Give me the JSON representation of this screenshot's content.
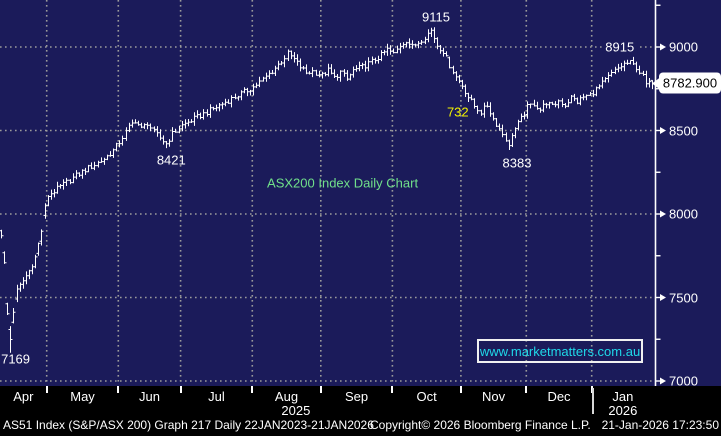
{
  "colors": {
    "background": "#1b1b5a",
    "band_background": "#000000",
    "grid": "#9b9b9b",
    "bars": "#ffffff",
    "white": "#ffffff",
    "yellow": "#f2f200",
    "green": "#70e08a",
    "cyan": "#1fd8e8",
    "tag_bg": "#ffffff",
    "tag_text": "#000000"
  },
  "chart_data": {
    "type": "bar",
    "subtype": "ohlc-daily-bars",
    "title": "ASX200 Index Daily Chart",
    "security": "AS51 Index (S&P/ASX 200)",
    "visible_range": "Apr 2025 - 21 Jan 2026",
    "days_shown": 210,
    "ylim": [
      6970,
      9280
    ],
    "grid": "dotted",
    "last_price": 8782.9,
    "path": [
      [
        0,
        7880
      ],
      [
        1,
        7700
      ],
      [
        2,
        7400
      ],
      [
        3,
        7250
      ],
      [
        4,
        7420
      ],
      [
        5,
        7540
      ],
      [
        7,
        7600
      ],
      [
        9,
        7660
      ],
      [
        11,
        7740
      ],
      [
        13,
        7900
      ],
      [
        14,
        8040
      ],
      [
        15,
        8110
      ],
      [
        18,
        8150
      ],
      [
        21,
        8190
      ],
      [
        24,
        8230
      ],
      [
        27,
        8265
      ],
      [
        30,
        8295
      ],
      [
        33,
        8330
      ],
      [
        36,
        8380
      ],
      [
        38,
        8430
      ],
      [
        41,
        8520
      ],
      [
        43,
        8560
      ],
      [
        45,
        8510
      ],
      [
        47,
        8545
      ],
      [
        49,
        8490
      ],
      [
        51,
        8455
      ],
      [
        53,
        8421
      ],
      [
        55,
        8480
      ],
      [
        57,
        8515
      ],
      [
        58,
        8530
      ],
      [
        61,
        8560
      ],
      [
        64,
        8590
      ],
      [
        67,
        8620
      ],
      [
        70,
        8650
      ],
      [
        73,
        8680
      ],
      [
        76,
        8710
      ],
      [
        79,
        8740
      ],
      [
        81,
        8760
      ],
      [
        84,
        8805
      ],
      [
        87,
        8855
      ],
      [
        90,
        8915
      ],
      [
        92,
        8960
      ],
      [
        94,
        8925
      ],
      [
        96,
        8880
      ],
      [
        98,
        8845
      ],
      [
        100,
        8855
      ],
      [
        103,
        8830
      ],
      [
        105,
        8860
      ],
      [
        107,
        8815
      ],
      [
        109,
        8850
      ],
      [
        111,
        8805
      ],
      [
        113,
        8860
      ],
      [
        116,
        8880
      ],
      [
        119,
        8912
      ],
      [
        122,
        8950
      ],
      [
        124,
        8985
      ],
      [
        126,
        8958
      ],
      [
        128,
        9010
      ],
      [
        130,
        9040
      ],
      [
        132,
        9000
      ],
      [
        134,
        9030
      ],
      [
        136,
        9062
      ],
      [
        138,
        9100
      ],
      [
        140,
        9010
      ],
      [
        142,
        8975
      ],
      [
        144,
        8890
      ],
      [
        146,
        8820
      ],
      [
        148,
        8770
      ],
      [
        150,
        8700
      ],
      [
        152,
        8645
      ],
      [
        154,
        8610
      ],
      [
        156,
        8650
      ],
      [
        158,
        8570
      ],
      [
        160,
        8510
      ],
      [
        162,
        8450
      ],
      [
        163,
        8400
      ],
      [
        164,
        8480
      ],
      [
        166,
        8540
      ],
      [
        168,
        8600
      ],
      [
        169,
        8640
      ],
      [
        171,
        8660
      ],
      [
        173,
        8625
      ],
      [
        175,
        8668
      ],
      [
        177,
        8642
      ],
      [
        179,
        8678
      ],
      [
        181,
        8652
      ],
      [
        183,
        8698
      ],
      [
        185,
        8672
      ],
      [
        187,
        8700
      ],
      [
        189,
        8712
      ],
      [
        190,
        8730
      ],
      [
        192,
        8762
      ],
      [
        194,
        8800
      ],
      [
        196,
        8840
      ],
      [
        198,
        8872
      ],
      [
        200,
        8898
      ],
      [
        202,
        8905
      ],
      [
        204,
        8878
      ],
      [
        206,
        8822
      ],
      [
        207,
        8775
      ],
      [
        209,
        8783
      ]
    ],
    "special_days": {
      "3": {
        "low": 7169
      },
      "138": {
        "high": 9115
      },
      "163": {
        "low": 8383
      },
      "202": {
        "high": 8915
      },
      "209": {
        "open": 8800,
        "close": 8782.9
      }
    },
    "annotations": [
      {
        "text": "9115",
        "day": 140,
        "price": 9180,
        "color": "white"
      },
      {
        "text": "8915",
        "day": 199,
        "price": 9000,
        "color": "white"
      },
      {
        "text": "8421",
        "day": 55,
        "price": 8323,
        "color": "white"
      },
      {
        "text": "8383",
        "day": 166,
        "price": 8305,
        "color": "white"
      },
      {
        "text": "7169",
        "day": 5,
        "price": 7132,
        "color": "white"
      },
      {
        "text": "732",
        "day": 147,
        "price": 8611,
        "color": "yellow"
      },
      {
        "text": "ASX200 Index Daily Chart",
        "day": 110,
        "price": 8186,
        "color": "green"
      }
    ],
    "y_axis": {
      "ticks": [
        {
          "label": "9000",
          "price": 9000
        },
        {
          "label": "8500",
          "price": 8500
        },
        {
          "label": "8000",
          "price": 8000
        },
        {
          "label": "7500",
          "price": 7500
        },
        {
          "label": "7000",
          "price": 7000
        }
      ],
      "minor_ticks": [
        9250,
        8750,
        8250,
        7750,
        7250
      ]
    },
    "x_axis": {
      "months": [
        {
          "label": "Apr",
          "start": 0,
          "end": 15
        },
        {
          "label": "May",
          "start": 15,
          "end": 38
        },
        {
          "label": "Jun",
          "start": 38,
          "end": 58
        },
        {
          "label": "Jul",
          "start": 58,
          "end": 81
        },
        {
          "label": "Aug",
          "start": 81,
          "end": 103
        },
        {
          "label": "Sep",
          "start": 103,
          "end": 126
        },
        {
          "label": "Oct",
          "start": 126,
          "end": 148
        },
        {
          "label": "Nov",
          "start": 148,
          "end": 169
        },
        {
          "label": "Dec",
          "start": 169,
          "end": 190
        },
        {
          "label": "Jan",
          "start": 190,
          "end": 210
        }
      ],
      "years": [
        {
          "label": "2025",
          "day": 95
        },
        {
          "label": "2026",
          "day": 200
        }
      ],
      "year_separator_day": 190
    }
  },
  "price_tag": {
    "text": "8782.900"
  },
  "watermark": {
    "text": "www.marketmatters.com.au"
  },
  "status_bar": {
    "left": "AS51 Index (S&P/ASX 200) Graph 217 Daily 22JAN2023-21JAN2026",
    "center": "Copyright© 2026 Bloomberg Finance L.P.",
    "right": "21-Jan-2026 17:23:50"
  }
}
